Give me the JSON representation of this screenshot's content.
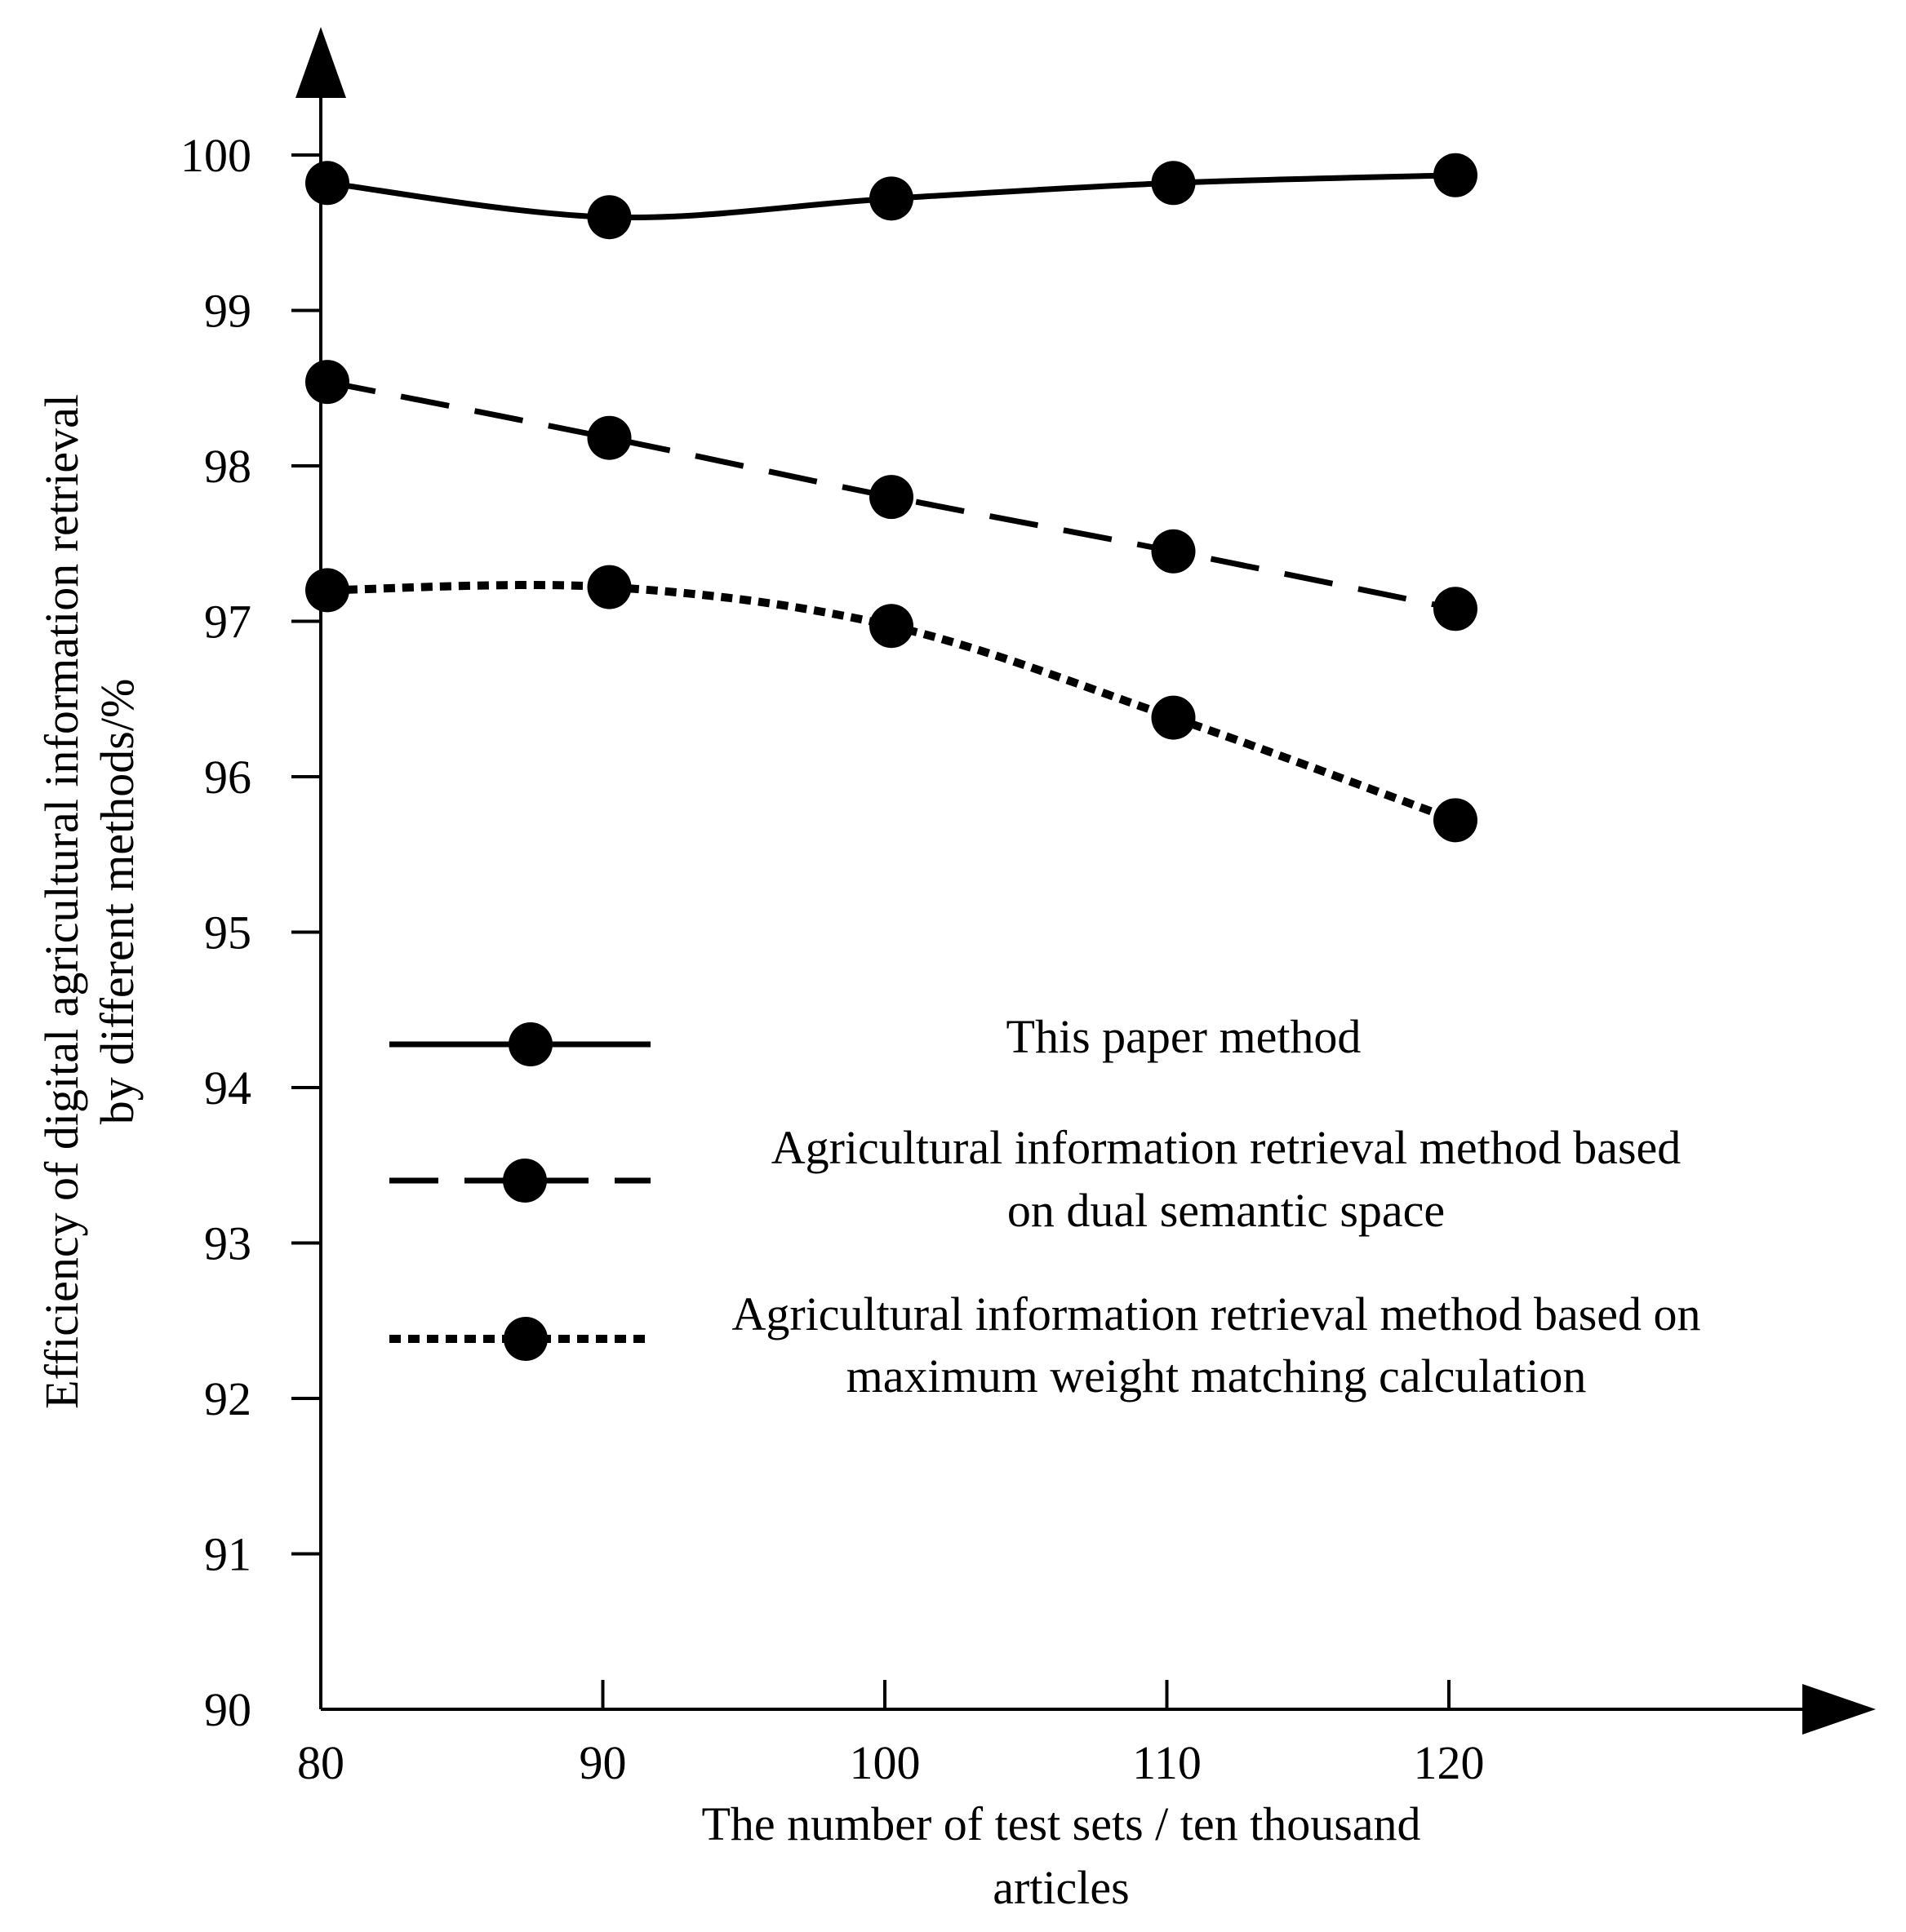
{
  "chart_data": {
    "type": "line",
    "title": "",
    "xlabel": [
      "The number of test sets / ten thousand",
      "articles"
    ],
    "ylabel": [
      "Efficiency of digital agricultural information retrieval",
      "by different methods/%"
    ],
    "x": [
      80,
      90,
      100,
      110,
      120
    ],
    "xticks": [
      "80",
      "90",
      "100",
      "110",
      "120"
    ],
    "xlim": [
      80,
      136
    ],
    "ylim": [
      90,
      100
    ],
    "yticks": [
      "90",
      "91",
      "92",
      "93",
      "94",
      "95",
      "96",
      "97",
      "98",
      "99",
      "100"
    ],
    "grid": false,
    "legend_position": "center",
    "series": [
      {
        "name": [
          "This paper method"
        ],
        "style": "solid",
        "values": [
          99.82,
          99.6,
          99.72,
          99.82,
          99.87
        ]
      },
      {
        "name": [
          "Agricultural information retrieval method based",
          "on dual semantic space"
        ],
        "style": "dashed",
        "values": [
          98.54,
          98.18,
          97.8,
          97.45,
          97.08
        ]
      },
      {
        "name": [
          "Agricultural information retrieval method based on",
          "maximum weight matching calculation"
        ],
        "style": "dotted",
        "values": [
          97.2,
          97.22,
          96.97,
          96.38,
          95.72
        ]
      }
    ]
  }
}
